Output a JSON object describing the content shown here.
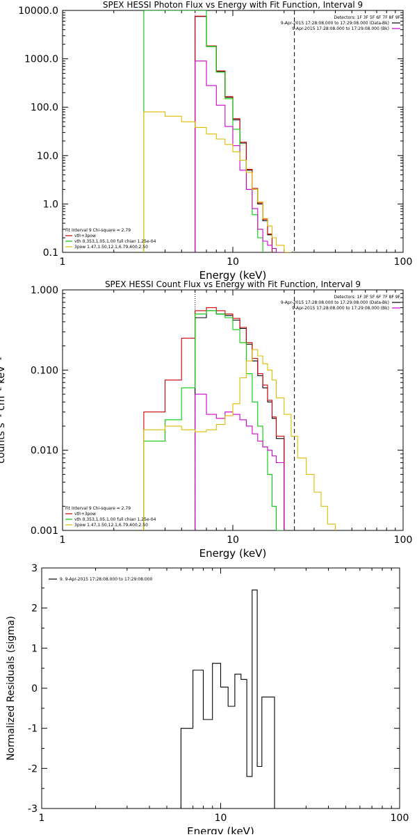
{
  "chart_data": [
    {
      "type": "line",
      "title": "SPEX HESSI Photon Flux vs Energy with Fit Function, Interval 9",
      "xlabel": "Energy (keV)",
      "ylabel": "",
      "x_scale": "log",
      "y_scale": "log",
      "xlim": [
        1,
        100
      ],
      "ylim": [
        0.1,
        10000
      ],
      "x_ticks": [
        {
          "v": 1,
          "label": "1"
        },
        {
          "v": 10,
          "label": "10"
        },
        {
          "v": 100,
          "label": "100"
        }
      ],
      "y_ticks": [
        {
          "v": 0.1,
          "label": "0.1"
        },
        {
          "v": 1,
          "label": "1.0"
        },
        {
          "v": 10,
          "label": "10.0"
        },
        {
          "v": 100,
          "label": "100.0"
        },
        {
          "v": 1000,
          "label": "1000.0"
        },
        {
          "v": 10000,
          "label": "10000.0"
        }
      ],
      "edges": [
        3,
        4,
        5,
        6,
        7,
        8,
        9,
        10,
        11,
        12,
        13,
        14,
        15,
        16,
        17,
        18,
        20,
        22,
        24,
        27
      ],
      "series": [
        {
          "name": "vth+3pow",
          "color": "#000000",
          "values": [
            null,
            null,
            null,
            7500,
            1800,
            550,
            160,
            55,
            18,
            5.0,
            2.0,
            1.0,
            0.45,
            0.23,
            null,
            null,
            null,
            null,
            null
          ]
        },
        {
          "name": "vth+3pow",
          "color": "#cc0000",
          "values": [
            null,
            null,
            null,
            7600,
            1850,
            560,
            165,
            58,
            19,
            5.2,
            2.1,
            1.05,
            0.48,
            0.24,
            null,
            null,
            null,
            null,
            null
          ]
        },
        {
          "name": "vth 0.353,1.05,1.00  full chian 1.25e-04",
          "color": "#00cc00",
          "values": [
            10000,
            10000,
            10000,
            10000,
            1800,
            530,
            150,
            35,
            8,
            2.0,
            0.6,
            0.2,
            null,
            null,
            null,
            null,
            null,
            null,
            null
          ]
        },
        {
          "name": "3pow 1.47,1.50,12.1,6.79,400,2.50",
          "color": "#cc00cc",
          "values": [
            null,
            null,
            null,
            900,
            280,
            110,
            40,
            16,
            5,
            2,
            0.8,
            0.3,
            0.17,
            0.14,
            0.12,
            0.1,
            null,
            null,
            null
          ]
        },
        {
          "name": "3pow 1.47,1.50,12.1,6.79,400,2.50",
          "color": "#ddbb00",
          "values": [
            80,
            65,
            50,
            38,
            28,
            22,
            17,
            12,
            8,
            4.5,
            2.0,
            1.1,
            0.5,
            0.35,
            0.2,
            0.14,
            0.1,
            null,
            null
          ]
        }
      ],
      "vlines": [
        {
          "x": 6,
          "color": "#cc00cc",
          "dash": "1,2"
        },
        {
          "x": 23,
          "color": "#000000",
          "dash": "6,4"
        }
      ],
      "fit_box": {
        "line1": "Fit Interval 9   Chi-square = 2.79",
        "entries": [
          {
            "color": "#cc0000",
            "label": "vth+3pow"
          },
          {
            "color": "#00cc00",
            "label": "vth 0.353,1.05,1.00  full chian 1.25e-04"
          },
          {
            "color": "#ddbb00",
            "label": "3pow 1.47,1.50,12.1,6.79,400,2.50"
          }
        ]
      },
      "info_box": {
        "detectors": "Detectors: 1F 3F 5F 6F 7F 8F 9F",
        "entries": [
          {
            "color": "#000000",
            "label": "9-Apr-2015 17:28:08.000 to 17:29:08.000 (Data-Bk)"
          },
          {
            "color": "#cc00cc",
            "label": "9-Apr-2015 17:28:08.000 to 17:29:08.000 (Bk)"
          }
        ]
      }
    },
    {
      "type": "line",
      "title": "SPEX HESSI Count Flux vs Energy with Fit Function, Interval 9",
      "xlabel": "Energy (keV)",
      "ylabel": "counts s⁻¹ cm⁻² keV⁻¹",
      "x_scale": "log",
      "y_scale": "log",
      "xlim": [
        1,
        100
      ],
      "ylim": [
        0.001,
        1
      ],
      "x_ticks": [
        {
          "v": 1,
          "label": "1"
        },
        {
          "v": 10,
          "label": "10"
        },
        {
          "v": 100,
          "label": "100"
        }
      ],
      "y_ticks": [
        {
          "v": 0.001,
          "label": "0.001"
        },
        {
          "v": 0.01,
          "label": "0.010"
        },
        {
          "v": 0.1,
          "label": "0.100"
        },
        {
          "v": 1,
          "label": "1.000"
        }
      ],
      "edges": [
        3,
        4,
        5,
        6,
        7,
        8,
        9,
        10,
        11,
        12,
        13,
        14,
        15,
        16,
        17,
        18,
        20,
        22,
        24,
        27,
        30,
        33,
        36,
        40
      ],
      "series": [
        {
          "name": "vth+3pow",
          "color": "#000000",
          "values": [
            null,
            null,
            null,
            0.45,
            0.55,
            0.5,
            0.48,
            0.42,
            0.33,
            0.21,
            0.13,
            0.085,
            0.06,
            0.04,
            0.025,
            0.014,
            null,
            null,
            null,
            null,
            null,
            null,
            null
          ]
        },
        {
          "name": "vth+3pow",
          "color": "#cc0000",
          "values": [
            0.03,
            0.075,
            0.25,
            0.55,
            0.6,
            0.55,
            0.5,
            0.44,
            0.34,
            0.22,
            0.14,
            0.09,
            0.065,
            0.042,
            0.026,
            0.015,
            null,
            null,
            null,
            null,
            null,
            null,
            null
          ]
        },
        {
          "name": "vth 0.353,1.05,1.00  full chian 1.25e-04",
          "color": "#00cc00",
          "values": [
            0.013,
            0.024,
            0.06,
            0.5,
            0.55,
            0.5,
            0.45,
            0.32,
            0.22,
            0.09,
            0.04,
            0.02,
            0.011,
            0.005,
            0.002,
            0.001,
            null,
            null,
            null,
            null,
            null,
            null,
            null
          ]
        },
        {
          "name": "3pow 1.47,1.50,12.1,6.79,400,2.50",
          "color": "#cc00cc",
          "values": [
            null,
            null,
            null,
            0.05,
            0.028,
            0.025,
            0.03,
            0.028,
            0.024,
            0.02,
            0.016,
            0.013,
            0.011,
            0.01,
            0.0085,
            0.007,
            null,
            null,
            null,
            null,
            null,
            null,
            null
          ]
        },
        {
          "name": "3pow 1.47,1.50,12.1,6.79,400,2.50",
          "color": "#ddbb00",
          "values": [
            0.018,
            0.02,
            0.018,
            0.017,
            0.018,
            0.021,
            0.027,
            0.038,
            0.08,
            0.13,
            0.18,
            0.15,
            0.12,
            0.1,
            0.075,
            0.045,
            0.028,
            0.015,
            0.008,
            0.005,
            0.003,
            0.002,
            0.0012
          ]
        }
      ],
      "vlines": [
        {
          "x": 6,
          "color": "#000000",
          "dash": "1,2"
        },
        {
          "x": 23,
          "color": "#000000",
          "dash": "6,4"
        }
      ],
      "fit_box": {
        "line1": "Fit Interval 9   Chi-square = 2.79",
        "entries": [
          {
            "color": "#cc0000",
            "label": "vth+3pow"
          },
          {
            "color": "#00cc00",
            "label": "vth 0.353,1.05,1.00  full chian 1.25e-04"
          },
          {
            "color": "#ddbb00",
            "label": "3pow 1.47,1.50,12.1,6.79,400,2.50"
          }
        ]
      },
      "info_box": {
        "detectors": "Detectors: 1F 3F 5F 6F 7F 8F 9F",
        "entries": [
          {
            "color": "#000000",
            "label": "9-Apr-2015 17:28:08.000 to 17:29:08.000 (Data-Bk)"
          },
          {
            "color": "#cc00cc",
            "label": "9-Apr-2015 17:28:08.000 to 17:29:08.000 (Bk)"
          }
        ]
      }
    },
    {
      "type": "line",
      "title": "",
      "xlabel": "Energy (keV)",
      "ylabel": "Normalized Residuals (sigma)",
      "x_scale": "log",
      "y_scale": "linear",
      "xlim": [
        1,
        100
      ],
      "ylim": [
        -3,
        3
      ],
      "x_ticks": [
        {
          "v": 1,
          "label": "1"
        },
        {
          "v": 10,
          "label": "10"
        },
        {
          "v": 100,
          "label": "100"
        }
      ],
      "y_ticks": [
        {
          "v": -3,
          "label": "-3"
        },
        {
          "v": -2,
          "label": "-2"
        },
        {
          "v": -1,
          "label": "-1"
        },
        {
          "v": 0,
          "label": "0"
        },
        {
          "v": 1,
          "label": "1"
        },
        {
          "v": 2,
          "label": "2"
        },
        {
          "v": 3,
          "label": "3"
        }
      ],
      "edges": [
        6,
        7,
        8,
        9,
        10,
        11,
        12,
        13,
        14,
        15,
        16,
        17,
        18,
        20,
        22
      ],
      "series": [
        {
          "name": "9. 9-Apr-2015 17:28:08.000 to 17:29:08.000",
          "color": "#000000",
          "values": [
            -1.0,
            0.45,
            -0.78,
            0.62,
            0.03,
            -0.45,
            0.35,
            0.22,
            -2.2,
            2.45,
            -1.95,
            -0.22,
            -0.22,
            -3
          ]
        }
      ],
      "legend": [
        {
          "color": "#000000",
          "label": "9. 9-Apr-2015 17:28:08.000 to 17:29:08.000"
        }
      ]
    }
  ]
}
